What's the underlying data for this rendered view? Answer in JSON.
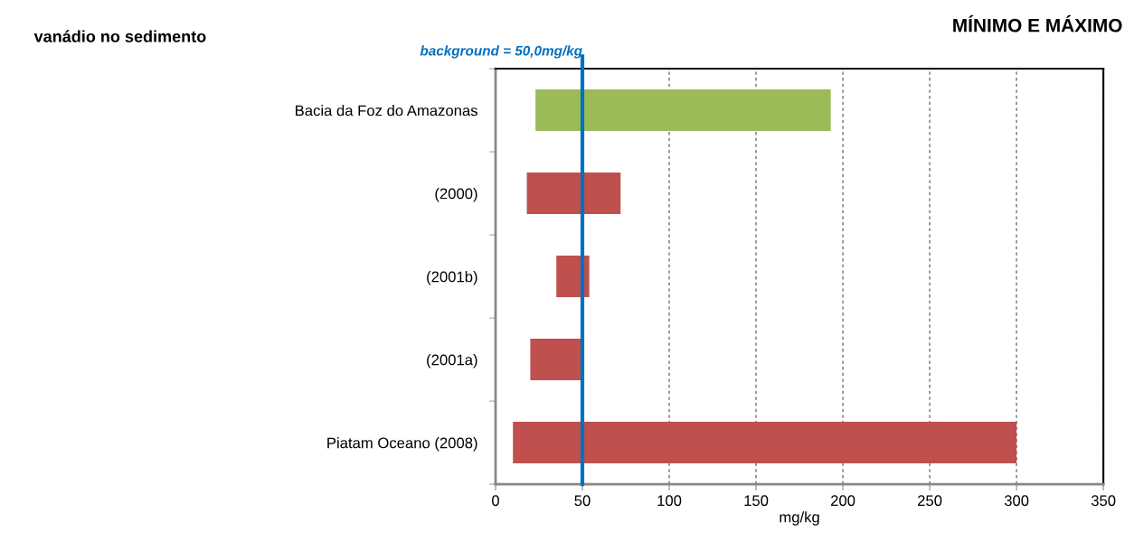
{
  "chart_data": {
    "type": "bar",
    "orientation": "horizontal",
    "title": "vanádio no sedimento",
    "subtitle": "MÍNIMO E MÁXIMO",
    "xlabel": "mg/kg",
    "categories": [
      "Bacia da Foz do Amazonas",
      "(2000)",
      "(2001b)",
      "(2001a)",
      "Piatam Oceano (2008)"
    ],
    "base": [
      23,
      18,
      35,
      20,
      10
    ],
    "values": [
      170,
      54,
      19,
      30,
      290
    ],
    "colors": [
      "#9bbb59",
      "#c0504d",
      "#c0504d",
      "#c0504d",
      "#c0504d"
    ],
    "xlim": [
      0,
      350
    ],
    "xticks": [
      0,
      50,
      100,
      150,
      200,
      250,
      300,
      350
    ],
    "grid": "x",
    "legend": false,
    "ref_lines": [
      {
        "axis": "x",
        "value": 50,
        "label": "background = 50,0mg/kg",
        "color": "#0070c0",
        "line_style": "solid"
      }
    ]
  }
}
